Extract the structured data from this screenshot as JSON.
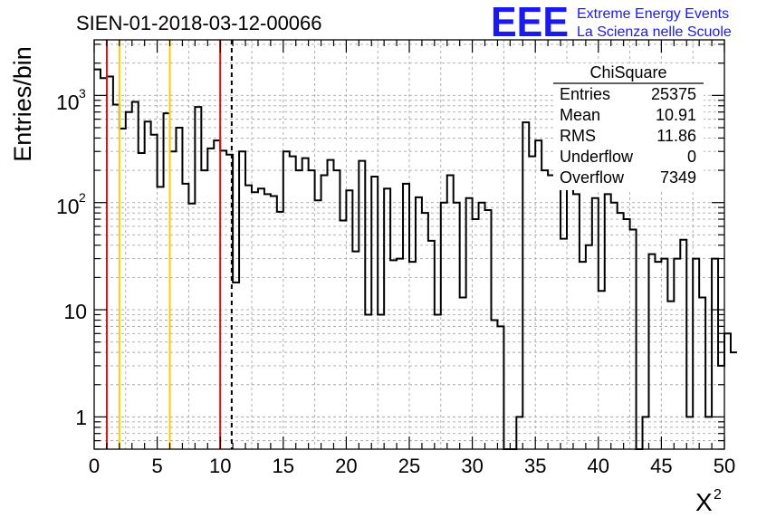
{
  "chart_data": {
    "type": "bar",
    "title": "SIEN-01-2018-03-12-00066",
    "xlabel": "X",
    "xlabel_superscript": "2",
    "ylabel": "Entries/bin",
    "x_scale": "linear",
    "y_scale": "log",
    "xlim": [
      0,
      50
    ],
    "ylim": [
      0.5,
      3300
    ],
    "grid": true,
    "bin_width": 0.5,
    "x_ticks": [
      0,
      5,
      10,
      15,
      20,
      25,
      30,
      35,
      40,
      45,
      50
    ],
    "x_tick_labels": [
      "0",
      "5",
      "10",
      "15",
      "20",
      "25",
      "30",
      "35",
      "40",
      "45",
      "50"
    ],
    "y_ticks": [
      1,
      10,
      100,
      1000
    ],
    "y_tick_labels": {
      "base": "10",
      "exp2": "2",
      "exp3": "3",
      "ten": "10",
      "one": "1"
    },
    "values": [
      1750,
      1450,
      1500,
      820,
      490,
      700,
      870,
      290,
      570,
      430,
      140,
      680,
      300,
      500,
      150,
      98,
      780,
      200,
      320,
      380,
      305,
      280,
      18,
      300,
      145,
      125,
      135,
      120,
      115,
      82,
      300,
      270,
      200,
      260,
      200,
      105,
      180,
      250,
      200,
      68,
      130,
      35,
      245,
      9,
      175,
      9,
      135,
      29,
      30,
      150,
      28,
      112,
      80,
      44,
      9,
      100,
      180,
      100,
      13,
      110,
      70,
      100,
      85,
      8,
      7,
      0.4,
      0.4,
      1,
      560,
      270,
      380,
      200,
      180,
      150,
      46,
      160,
      120,
      28,
      40,
      110,
      15,
      120,
      100,
      80,
      70,
      56,
      0.4,
      1,
      33,
      28,
      30,
      12,
      30,
      45,
      1,
      30,
      13,
      1,
      30,
      3,
      6,
      4
    ],
    "vertical_lines": [
      {
        "x": 1,
        "color": "#dd1111",
        "style": "solid"
      },
      {
        "x": 2,
        "color": "#ffcc00",
        "style": "solid"
      },
      {
        "x": 6,
        "color": "#ffcc00",
        "style": "solid"
      },
      {
        "x": 10,
        "color": "#dd1111",
        "style": "solid"
      },
      {
        "x": 10.91,
        "color": "#000000",
        "style": "dashed"
      }
    ],
    "line_color": "#000000",
    "stats": {
      "title": "ChiSquare",
      "rows": [
        {
          "label": "Entries",
          "value": "25375"
        },
        {
          "label": "Mean",
          "value": "10.91"
        },
        {
          "label": "RMS",
          "value": "11.86"
        },
        {
          "label": "Underflow",
          "value": "0"
        },
        {
          "label": "Overflow",
          "value": "7349"
        }
      ]
    }
  },
  "logo": {
    "text": "EEE",
    "line1": "Extreme Energy Events",
    "line2": "La Scienza nelle Scuole",
    "color": "#1a1aee"
  }
}
